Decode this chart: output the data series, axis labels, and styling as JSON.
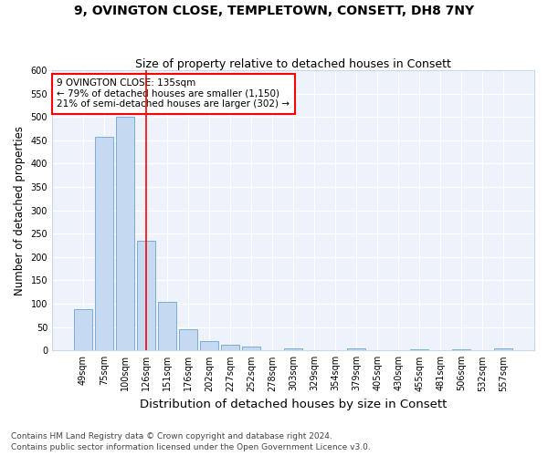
{
  "title_line1": "9, OVINGTON CLOSE, TEMPLETOWN, CONSETT, DH8 7NY",
  "title_line2": "Size of property relative to detached houses in Consett",
  "xlabel": "Distribution of detached houses by size in Consett",
  "ylabel": "Number of detached properties",
  "categories": [
    "49sqm",
    "75sqm",
    "100sqm",
    "126sqm",
    "151sqm",
    "176sqm",
    "202sqm",
    "227sqm",
    "252sqm",
    "278sqm",
    "303sqm",
    "329sqm",
    "354sqm",
    "379sqm",
    "405sqm",
    "430sqm",
    "455sqm",
    "481sqm",
    "506sqm",
    "532sqm",
    "557sqm"
  ],
  "values": [
    88,
    457,
    500,
    235,
    105,
    46,
    20,
    13,
    8,
    0,
    5,
    0,
    0,
    4,
    0,
    0,
    3,
    0,
    3,
    0,
    4
  ],
  "bar_color": "#c5d9f1",
  "bar_edge_color": "#7aadd4",
  "red_line_x": 3.0,
  "annotation_text1": "9 OVINGTON CLOSE: 135sqm",
  "annotation_text2": "← 79% of detached houses are smaller (1,150)",
  "annotation_text3": "21% of semi-detached houses are larger (302) →",
  "annotation_box_color": "white",
  "annotation_border_color": "red",
  "footer_line1": "Contains HM Land Registry data © Crown copyright and database right 2024.",
  "footer_line2": "Contains public sector information licensed under the Open Government Licence v3.0.",
  "ylim": [
    0,
    600
  ],
  "yticks": [
    0,
    50,
    100,
    150,
    200,
    250,
    300,
    350,
    400,
    450,
    500,
    550,
    600
  ],
  "bg_color": "#eef2fa",
  "grid_color": "white",
  "title_fontsize": 10,
  "subtitle_fontsize": 9,
  "tick_fontsize": 7,
  "ylabel_fontsize": 8.5,
  "xlabel_fontsize": 9.5,
  "footer_fontsize": 6.5
}
